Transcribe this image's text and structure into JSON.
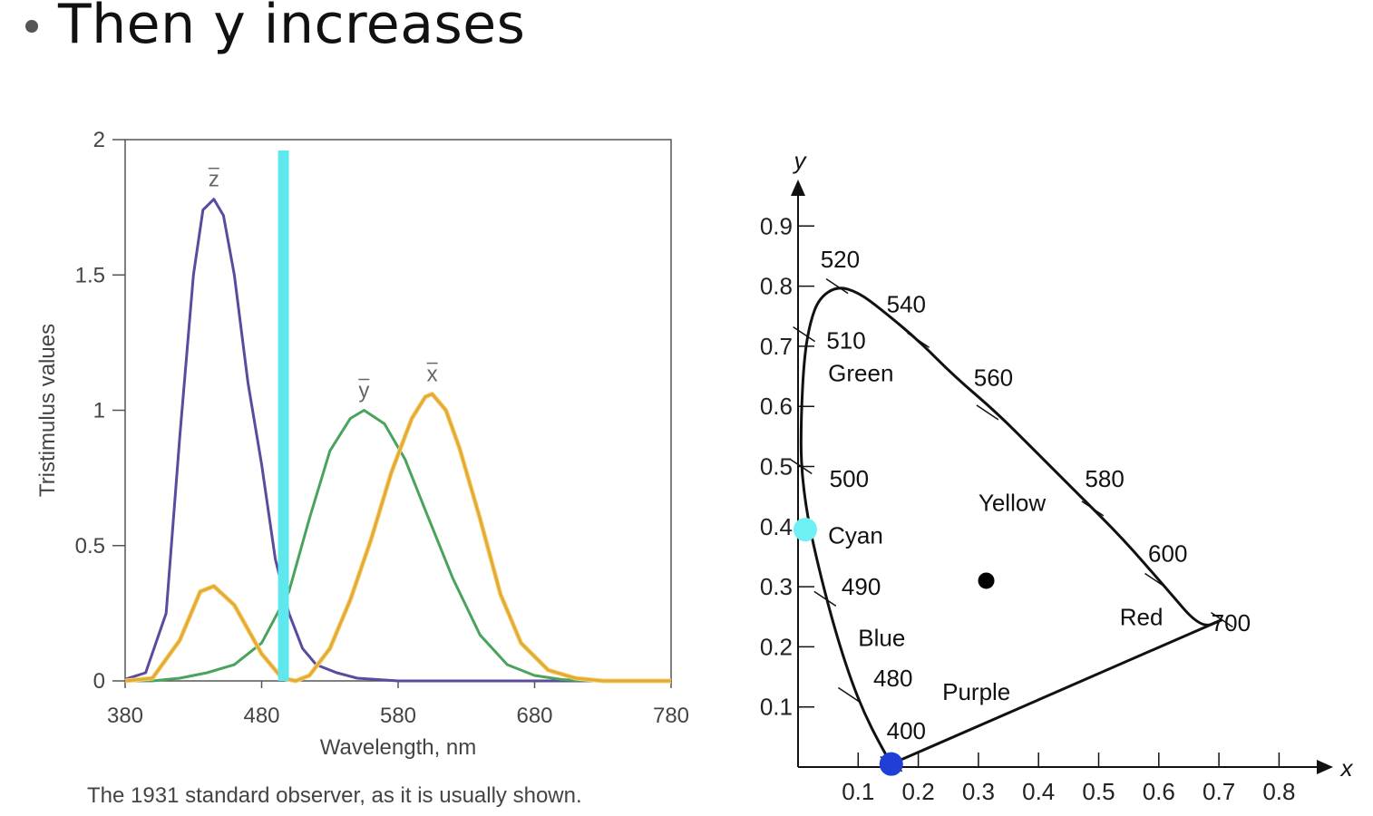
{
  "slide": {
    "title": "Then y increases",
    "caption": "The 1931 standard observer, as it is usually shown."
  },
  "colors": {
    "z_curve": "#5b4a9e",
    "y_curve": "#4aa35c",
    "x_curve": "#e6a83a",
    "marker_bar": "#5ee8ee",
    "cyan_point": "#6ff0f5",
    "blue_point": "#1f3fd6",
    "locus": "#111111"
  },
  "chart_data": [
    {
      "type": "line",
      "title": "",
      "xlabel": "Wavelength, nm",
      "ylabel": "Tristimulus values",
      "xlim": [
        380,
        780
      ],
      "ylim": [
        0,
        2
      ],
      "xticks": [
        380,
        480,
        580,
        680,
        780
      ],
      "yticks": [
        0,
        0.5,
        1,
        1.5,
        2
      ],
      "ytick_labels": [
        "0",
        "0.5",
        "1",
        "1.5",
        "2"
      ],
      "marker_wavelength": 496,
      "series": [
        {
          "name": "z̄",
          "label": "z",
          "points": [
            [
              380,
              0.006
            ],
            [
              395,
              0.03
            ],
            [
              410,
              0.25
            ],
            [
              420,
              0.9
            ],
            [
              430,
              1.5
            ],
            [
              437,
              1.74
            ],
            [
              445,
              1.78
            ],
            [
              452,
              1.72
            ],
            [
              460,
              1.5
            ],
            [
              470,
              1.1
            ],
            [
              480,
              0.8
            ],
            [
              490,
              0.45
            ],
            [
              500,
              0.25
            ],
            [
              510,
              0.12
            ],
            [
              520,
              0.06
            ],
            [
              535,
              0.03
            ],
            [
              550,
              0.01
            ],
            [
              580,
              0.0
            ],
            [
              780,
              0.0
            ]
          ]
        },
        {
          "name": "ȳ",
          "label": "y",
          "points": [
            [
              380,
              0.0
            ],
            [
              400,
              0.0
            ],
            [
              420,
              0.01
            ],
            [
              440,
              0.03
            ],
            [
              460,
              0.06
            ],
            [
              480,
              0.14
            ],
            [
              500,
              0.33
            ],
            [
              515,
              0.6
            ],
            [
              530,
              0.85
            ],
            [
              545,
              0.97
            ],
            [
              555,
              1.0
            ],
            [
              570,
              0.95
            ],
            [
              585,
              0.82
            ],
            [
              600,
              0.63
            ],
            [
              620,
              0.38
            ],
            [
              640,
              0.17
            ],
            [
              660,
              0.06
            ],
            [
              680,
              0.02
            ],
            [
              700,
              0.005
            ],
            [
              720,
              0.0
            ],
            [
              780,
              0.0
            ]
          ]
        },
        {
          "name": "x̄",
          "label": "x",
          "points": [
            [
              380,
              0.0
            ],
            [
              400,
              0.01
            ],
            [
              420,
              0.15
            ],
            [
              435,
              0.33
            ],
            [
              445,
              0.35
            ],
            [
              460,
              0.28
            ],
            [
              480,
              0.1
            ],
            [
              495,
              0.01
            ],
            [
              505,
              0.0
            ],
            [
              515,
              0.02
            ],
            [
              530,
              0.12
            ],
            [
              545,
              0.3
            ],
            [
              560,
              0.52
            ],
            [
              575,
              0.77
            ],
            [
              590,
              0.97
            ],
            [
              600,
              1.05
            ],
            [
              605,
              1.06
            ],
            [
              615,
              1.0
            ],
            [
              625,
              0.86
            ],
            [
              640,
              0.6
            ],
            [
              655,
              0.32
            ],
            [
              670,
              0.14
            ],
            [
              690,
              0.04
            ],
            [
              710,
              0.01
            ],
            [
              730,
              0.0
            ],
            [
              780,
              0.0
            ]
          ]
        }
      ]
    },
    {
      "type": "scatter",
      "title": "",
      "xlabel": "x",
      "ylabel": "y",
      "xlim": [
        0,
        0.85
      ],
      "ylim": [
        0,
        0.95
      ],
      "xticks": [
        0.1,
        0.2,
        0.3,
        0.4,
        0.5,
        0.6,
        0.7,
        0.8
      ],
      "xtick_labels": [
        "0.1",
        "0.2",
        "0.3",
        "0.4",
        "0.5",
        "0.6",
        "0.7",
        "0.8"
      ],
      "yticks": [
        0.1,
        0.2,
        0.3,
        0.4,
        0.5,
        0.6,
        0.7,
        0.8,
        0.9
      ],
      "ytick_labels": [
        "0.1",
        "0.2",
        "0.3",
        "0.4",
        "0.5",
        "0.6",
        "0.7",
        "0.8",
        "0.9"
      ],
      "spectral_locus": [
        [
          0.155,
          0.005
        ],
        [
          0.135,
          0.04
        ],
        [
          0.11,
          0.09
        ],
        [
          0.09,
          0.14
        ],
        [
          0.07,
          0.2
        ],
        [
          0.05,
          0.27
        ],
        [
          0.03,
          0.35
        ],
        [
          0.015,
          0.42
        ],
        [
          0.005,
          0.5
        ],
        [
          0.005,
          0.58
        ],
        [
          0.01,
          0.68
        ],
        [
          0.02,
          0.74
        ],
        [
          0.035,
          0.78
        ],
        [
          0.065,
          0.8
        ],
        [
          0.1,
          0.79
        ],
        [
          0.14,
          0.76
        ],
        [
          0.2,
          0.71
        ],
        [
          0.26,
          0.65
        ],
        [
          0.33,
          0.59
        ],
        [
          0.4,
          0.52
        ],
        [
          0.47,
          0.45
        ],
        [
          0.54,
          0.38
        ],
        [
          0.61,
          0.3
        ],
        [
          0.67,
          0.23
        ],
        [
          0.705,
          0.245
        ],
        [
          0.705,
          0.245
        ]
      ],
      "purple_line": [
        [
          0.705,
          0.245
        ],
        [
          0.155,
          0.005
        ]
      ],
      "wavelength_ticks": [
        {
          "label": "400",
          "x": 0.155,
          "y": 0.005,
          "lx": 0.18,
          "ly": 0.06
        },
        {
          "label": "480",
          "x": 0.085,
          "y": 0.12,
          "lx": 0.158,
          "ly": 0.148
        },
        {
          "label": "490",
          "x": 0.045,
          "y": 0.28,
          "lx": 0.105,
          "ly": 0.3
        },
        {
          "label": "500",
          "x": 0.005,
          "y": 0.5,
          "lx": 0.085,
          "ly": 0.48
        },
        {
          "label": "510",
          "x": 0.01,
          "y": 0.72,
          "lx": 0.08,
          "ly": 0.71
        },
        {
          "label": "520",
          "x": 0.065,
          "y": 0.8,
          "lx": 0.07,
          "ly": 0.845
        },
        {
          "label": "540",
          "x": 0.2,
          "y": 0.71,
          "lx": 0.18,
          "ly": 0.77
        },
        {
          "label": "560",
          "x": 0.315,
          "y": 0.59,
          "lx": 0.325,
          "ly": 0.648
        },
        {
          "label": "580",
          "x": 0.49,
          "y": 0.43,
          "lx": 0.51,
          "ly": 0.48
        },
        {
          "label": "600",
          "x": 0.595,
          "y": 0.31,
          "lx": 0.615,
          "ly": 0.355
        },
        {
          "label": "700",
          "x": 0.705,
          "y": 0.245,
          "lx": 0.72,
          "ly": 0.24
        }
      ],
      "region_labels": [
        {
          "label": "Green",
          "x": 0.05,
          "y": 0.655
        },
        {
          "label": "Yellow",
          "x": 0.3,
          "y": 0.44
        },
        {
          "label": "Cyan",
          "x": 0.05,
          "y": 0.385
        },
        {
          "label": "Blue",
          "x": 0.1,
          "y": 0.215
        },
        {
          "label": "Purple",
          "x": 0.24,
          "y": 0.125
        },
        {
          "label": "Red",
          "x": 0.535,
          "y": 0.25
        }
      ],
      "points": [
        {
          "name": "cyan-point",
          "x": 0.012,
          "y": 0.395,
          "color": "#6ff0f5"
        },
        {
          "name": "blue-point",
          "x": 0.155,
          "y": 0.005,
          "color": "#1f3fd6"
        },
        {
          "name": "white-point",
          "x": 0.313,
          "y": 0.31,
          "color": "#000000"
        }
      ]
    }
  ]
}
